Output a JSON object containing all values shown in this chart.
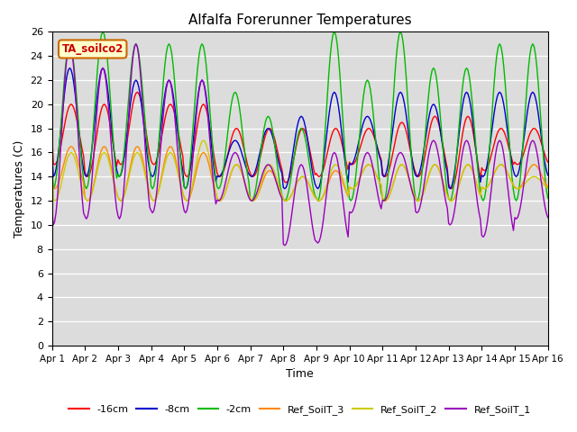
{
  "title": "Alfalfa Forerunner Temperatures",
  "xlabel": "Time",
  "ylabel": "Temperatures (C)",
  "ylim": [
    0,
    26
  ],
  "xlim": [
    0,
    360
  ],
  "legend_title": "TA_soilco2",
  "facecolor": "#dcdcdc",
  "series_colors": {
    "red": "#ff0000",
    "blue": "#0000cd",
    "green": "#00bb00",
    "orange": "#ff8800",
    "yellow": "#cccc00",
    "purple": "#9900bb"
  },
  "xtick_labels": [
    "Apr 1",
    "Apr 2",
    "Apr 3",
    "Apr 4",
    "Apr 5",
    "Apr 6",
    "Apr 7",
    "Apr 8",
    "Apr 9",
    "Apr 10",
    "Apr 11",
    "Apr 12",
    "Apr 13",
    "Apr 14",
    "Apr 15",
    "Apr 16"
  ],
  "xtick_positions": [
    0,
    24,
    48,
    72,
    96,
    120,
    144,
    168,
    192,
    216,
    240,
    264,
    288,
    312,
    336,
    360
  ],
  "ytick_positions": [
    0,
    2,
    4,
    6,
    8,
    10,
    12,
    14,
    16,
    18,
    20,
    22,
    24,
    26
  ],
  "legend_labels": [
    "-16cm",
    "-8cm",
    "-2cm",
    "Ref_SoilT_3",
    "Ref_SoilT_2",
    "Ref_SoilT_1"
  ]
}
